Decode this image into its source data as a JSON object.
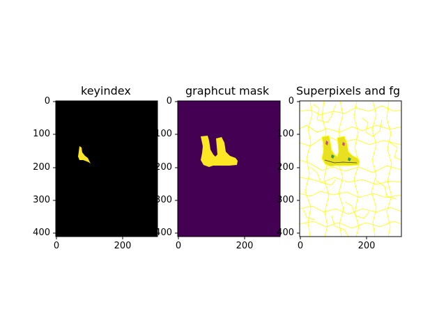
{
  "panels": [
    {
      "title": "keyindex",
      "yticks": [
        "0",
        "100",
        "200",
        "300",
        "400"
      ],
      "xticks": [
        "0",
        "200"
      ],
      "background_color": "#000000",
      "mask_color": "#fde725"
    },
    {
      "title": "graphcut mask",
      "yticks": [
        "0",
        "100",
        "200",
        "300",
        "400"
      ],
      "xticks": [
        "0",
        "200"
      ],
      "background_color": "#440154",
      "mask_color": "#fde725"
    },
    {
      "title": "Superpixels and fg",
      "yticks": [
        "0",
        "100",
        "200",
        "300",
        "400"
      ],
      "xticks": [
        "0",
        "200"
      ],
      "background_color": "#ffffff",
      "boundary_color": "#ffff00",
      "fg_color": "#e8e020"
    }
  ]
}
